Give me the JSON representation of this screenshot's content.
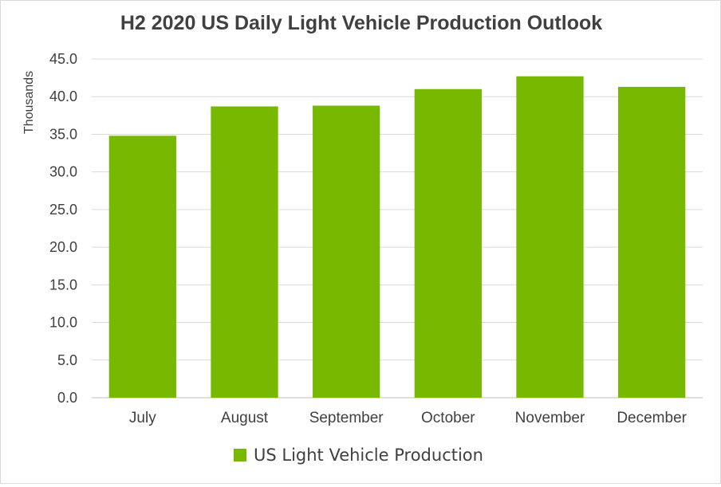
{
  "chart_data": {
    "type": "bar",
    "title": "H2 2020 US Daily Light Vehicle Production Outlook",
    "ylabel": "Thousands",
    "xlabel": "",
    "categories": [
      "July",
      "August",
      "September",
      "October",
      "November",
      "December"
    ],
    "series": [
      {
        "name": "US Light Vehicle Production",
        "values": [
          34.8,
          38.7,
          38.8,
          41.0,
          42.7,
          41.3
        ],
        "color": "#77b800"
      }
    ],
    "ylim": [
      0,
      45
    ],
    "yticks": [
      "0.0",
      "5.0",
      "10.0",
      "15.0",
      "20.0",
      "25.0",
      "30.0",
      "35.0",
      "40.0",
      "45.0"
    ],
    "grid": true,
    "legend_position": "bottom"
  }
}
